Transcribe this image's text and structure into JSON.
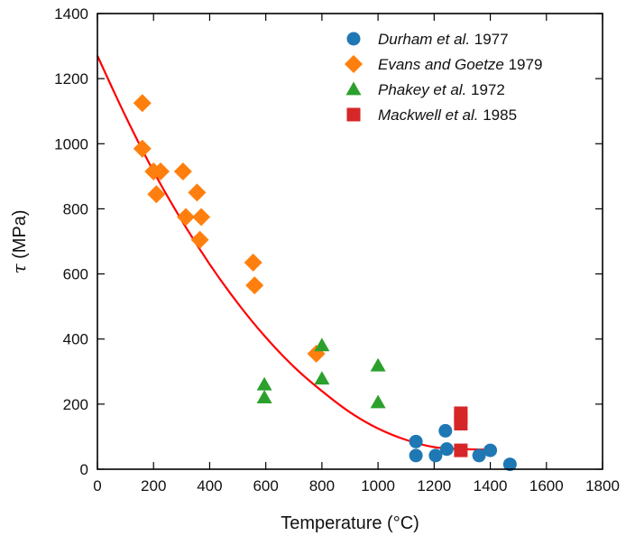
{
  "chart_data": {
    "type": "scatter",
    "title": "",
    "xlabel": "Temperature (°C)",
    "ylabel_symbol": "τ",
    "ylabel_unit": " (MPa)",
    "xlim": [
      0,
      1800
    ],
    "ylim": [
      0,
      1400
    ],
    "xticks": [
      0,
      200,
      400,
      600,
      800,
      1000,
      1200,
      1400,
      1600,
      1800
    ],
    "yticks": [
      0,
      200,
      400,
      600,
      800,
      1000,
      1200,
      1400
    ],
    "grid": false,
    "legend_position": "top-right",
    "series": [
      {
        "name": "Durham et al. 1977",
        "legend_italic": "Durham et al.",
        "legend_plain": " 1977",
        "marker": "circle",
        "color": "#1f77b4",
        "points": [
          [
            1135,
            85
          ],
          [
            1135,
            42
          ],
          [
            1205,
            42
          ],
          [
            1240,
            118
          ],
          [
            1245,
            62
          ],
          [
            1360,
            42
          ],
          [
            1400,
            58
          ],
          [
            1470,
            15
          ]
        ]
      },
      {
        "name": "Evans and Goetze 1979",
        "legend_italic": "Evans and Goetze",
        "legend_plain": " 1979",
        "marker": "diamond",
        "color": "#ff7f0e",
        "points": [
          [
            160,
            1125
          ],
          [
            160,
            985
          ],
          [
            200,
            915
          ],
          [
            225,
            915
          ],
          [
            210,
            845
          ],
          [
            305,
            915
          ],
          [
            315,
            775
          ],
          [
            355,
            850
          ],
          [
            370,
            775
          ],
          [
            365,
            705
          ],
          [
            555,
            635
          ],
          [
            560,
            565
          ],
          [
            780,
            355
          ]
        ]
      },
      {
        "name": "Phakey et al. 1972",
        "legend_italic": "Phakey et al.",
        "legend_plain": " 1972",
        "marker": "triangle",
        "color": "#2ca02c",
        "points": [
          [
            595,
            260
          ],
          [
            595,
            220
          ],
          [
            800,
            380
          ],
          [
            800,
            278
          ],
          [
            1000,
            318
          ],
          [
            1000,
            205
          ]
        ]
      },
      {
        "name": "Mackwell et al. 1985",
        "legend_italic": "Mackwell et al.",
        "legend_plain": " 1985",
        "marker": "square",
        "color": "#d62728",
        "points": [
          [
            1295,
            172
          ],
          [
            1295,
            160
          ],
          [
            1295,
            140
          ],
          [
            1295,
            58
          ]
        ]
      }
    ],
    "fit_curve": {
      "color": "#ff0000",
      "x": [
        0,
        100,
        200,
        300,
        400,
        500,
        600,
        700,
        800,
        900,
        1000,
        1100,
        1200,
        1300,
        1400
      ],
      "y": [
        1270,
        1085,
        915,
        765,
        630,
        510,
        405,
        315,
        240,
        175,
        125,
        90,
        68,
        62,
        60
      ]
    }
  }
}
